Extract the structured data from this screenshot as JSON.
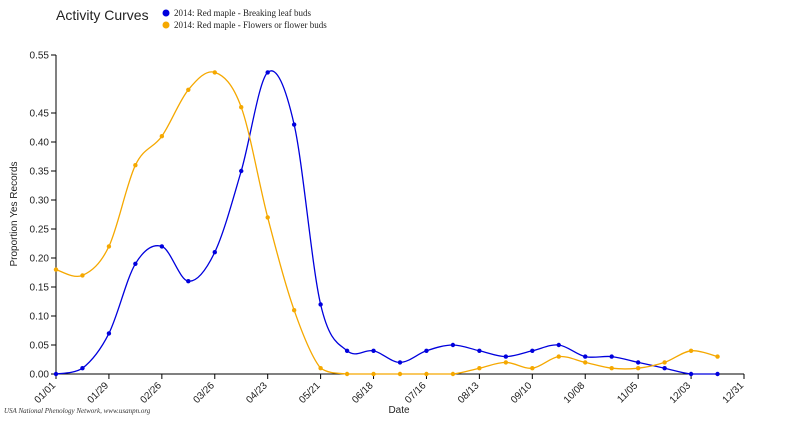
{
  "chart_data": {
    "type": "line",
    "title": "Activity Curves",
    "xlabel": "Date",
    "ylabel": "Proportion Yes Records",
    "ylim": [
      0,
      0.55
    ],
    "y_ticks": [
      "0.00",
      "0.05",
      "0.10",
      "0.15",
      "0.20",
      "0.25",
      "0.30",
      "0.35",
      "0.40",
      "0.45",
      "0.55"
    ],
    "y_tick_values": [
      0,
      0.05,
      0.1,
      0.15,
      0.2,
      0.25,
      0.3,
      0.35,
      0.4,
      0.45,
      0.55
    ],
    "x_ticks": [
      "01/01",
      "01/29",
      "02/26",
      "03/26",
      "04/23",
      "05/21",
      "06/18",
      "07/16",
      "08/13",
      "09/10",
      "10/08",
      "11/05",
      "12/03",
      "12/31"
    ],
    "x_tick_days": [
      0,
      28,
      56,
      84,
      112,
      140,
      168,
      196,
      224,
      252,
      280,
      308,
      336,
      364
    ],
    "xlim_days": [
      0,
      364
    ],
    "grid": false,
    "legend_position": "top",
    "credit": "USA National Phenology Network, www.usanpn.org",
    "series": [
      {
        "name": "2014: Red maple - Breaking leaf buds",
        "color": "#0000dd",
        "x": [
          0,
          14,
          28,
          42,
          56,
          70,
          84,
          98,
          112,
          126,
          140,
          154,
          168,
          182,
          196,
          210,
          224,
          238,
          252,
          266,
          280,
          294,
          308,
          322,
          336,
          350
        ],
        "y": [
          0.0,
          0.01,
          0.07,
          0.19,
          0.22,
          0.16,
          0.21,
          0.35,
          0.52,
          0.43,
          0.12,
          0.04,
          0.04,
          0.02,
          0.04,
          0.05,
          0.04,
          0.03,
          0.04,
          0.05,
          0.03,
          0.03,
          0.02,
          0.01,
          0.0,
          0.0
        ]
      },
      {
        "name": "2014: Red maple - Flowers or flower buds",
        "color": "#f5a800",
        "x": [
          0,
          14,
          28,
          42,
          56,
          70,
          84,
          98,
          112,
          126,
          140,
          154,
          168,
          182,
          196,
          210,
          224,
          238,
          252,
          266,
          280,
          294,
          308,
          322,
          336,
          350
        ],
        "y": [
          0.18,
          0.17,
          0.22,
          0.36,
          0.41,
          0.49,
          0.52,
          0.46,
          0.27,
          0.11,
          0.01,
          0.0,
          0.0,
          0.0,
          0.0,
          0.0,
          0.01,
          0.02,
          0.01,
          0.03,
          0.02,
          0.01,
          0.01,
          0.02,
          0.04,
          0.03
        ]
      }
    ]
  }
}
